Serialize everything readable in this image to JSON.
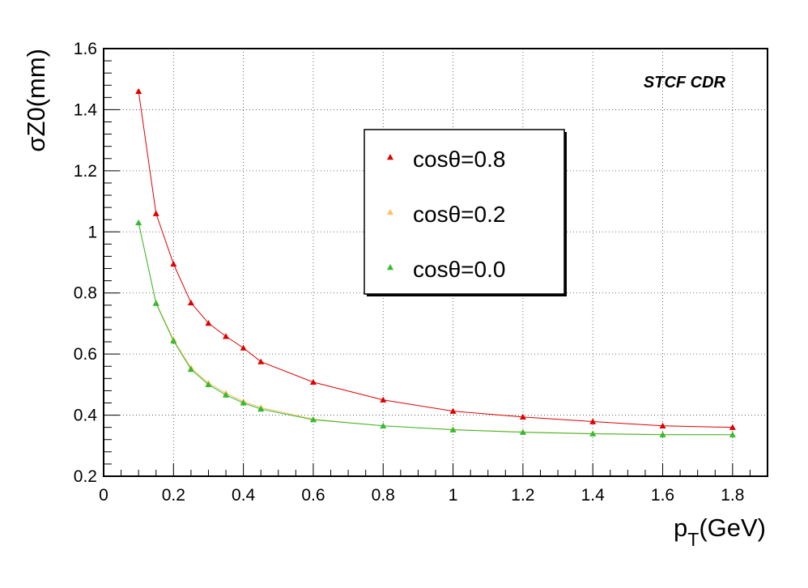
{
  "chart_data": {
    "type": "line",
    "xlabel_main": "p",
    "xlabel_sub": "T",
    "xlabel_rest": "(GeV)",
    "ylabel": "σZ0(mm)",
    "annotation": "STCF CDR",
    "xlim": [
      0,
      1.9
    ],
    "ylim": [
      0.2,
      1.6
    ],
    "xticks": [
      0,
      0.2,
      0.4,
      0.6,
      0.8,
      1,
      1.2,
      1.4,
      1.6,
      1.8
    ],
    "xtick_labels": [
      "0",
      "0.2",
      "0.4",
      "0.6",
      "0.8",
      "1",
      "1.2",
      "1.4",
      "1.6",
      "1.8"
    ],
    "yticks": [
      0.2,
      0.4,
      0.6,
      0.8,
      1.0,
      1.2,
      1.4,
      1.6
    ],
    "ytick_labels": [
      "0.2",
      "0.4",
      "0.6",
      "0.8",
      "1",
      "1.2",
      "1.4",
      "1.6"
    ],
    "grid": true,
    "legend_position": "upper-center",
    "series": [
      {
        "name": "cosθ=0.8",
        "color": "#dd0000",
        "x": [
          0.1,
          0.15,
          0.2,
          0.25,
          0.3,
          0.35,
          0.4,
          0.45,
          0.6,
          0.8,
          1.0,
          1.2,
          1.4,
          1.6,
          1.8
        ],
        "y": [
          1.46,
          1.06,
          0.895,
          0.768,
          0.701,
          0.658,
          0.62,
          0.575,
          0.508,
          0.45,
          0.413,
          0.394,
          0.379,
          0.365,
          0.36
        ]
      },
      {
        "name": "cosθ=0.2",
        "color": "#ffc060",
        "x": [
          0.1,
          0.15,
          0.2,
          0.25,
          0.3,
          0.35,
          0.4,
          0.45,
          0.6,
          0.8,
          1.0,
          1.2,
          1.4,
          1.6,
          1.8
        ],
        "y": [
          1.03,
          0.768,
          0.648,
          0.555,
          0.505,
          0.472,
          0.445,
          0.425,
          0.387,
          0.365,
          0.353,
          0.345,
          0.34,
          0.337,
          0.336
        ]
      },
      {
        "name": "cosθ=0.0",
        "color": "#33bb33",
        "x": [
          0.1,
          0.15,
          0.2,
          0.25,
          0.3,
          0.35,
          0.4,
          0.45,
          0.6,
          0.8,
          1.0,
          1.2,
          1.4,
          1.6,
          1.8
        ],
        "y": [
          1.03,
          0.766,
          0.643,
          0.55,
          0.5,
          0.466,
          0.44,
          0.42,
          0.385,
          0.365,
          0.352,
          0.344,
          0.339,
          0.336,
          0.336
        ]
      }
    ]
  }
}
